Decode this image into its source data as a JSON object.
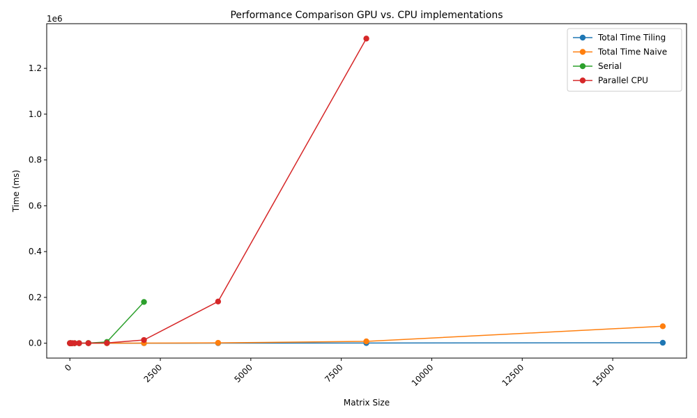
{
  "chart_data": {
    "type": "line",
    "title": "Performance Comparison GPU vs. CPU implementations",
    "xlabel": "Matrix Size",
    "ylabel": "Time (ms)",
    "y_offset_label": "1e6",
    "xlim": [
      -640,
      17040
    ],
    "ylim": [
      -65000,
      1395000
    ],
    "x_ticks": [
      0,
      2500,
      5000,
      7500,
      10000,
      12500,
      15000
    ],
    "x_tick_labels": [
      "0",
      "2500",
      "5000",
      "7500",
      "10000",
      "12500",
      "15000"
    ],
    "x_tick_rotation": 45,
    "y_ticks": [
      0,
      200000,
      400000,
      600000,
      800000,
      1000000,
      1200000
    ],
    "y_tick_labels": [
      "0.0",
      "0.2",
      "0.4",
      "0.6",
      "0.8",
      "1.0",
      "1.2"
    ],
    "grid": false,
    "legend_position": "top-right",
    "series": [
      {
        "name": "Total Time Tiling",
        "color": "#1f77b4",
        "x": [
          2,
          4,
          8,
          16,
          32,
          64,
          128,
          256,
          512,
          1024,
          2048,
          4096,
          8192,
          16384
        ],
        "y": [
          0,
          0,
          0,
          0,
          0,
          0,
          0,
          0,
          5,
          20,
          100,
          300,
          700,
          2000
        ]
      },
      {
        "name": "Total Time Naive",
        "color": "#ff7f0e",
        "x": [
          2,
          4,
          8,
          16,
          32,
          64,
          128,
          256,
          512,
          1024,
          2048,
          4096,
          8192,
          16384
        ],
        "y": [
          0,
          0,
          0,
          0,
          0,
          0,
          0,
          0,
          10,
          50,
          250,
          1500,
          8000,
          74000
        ]
      },
      {
        "name": "Serial",
        "color": "#2ca02c",
        "x": [
          2,
          4,
          8,
          16,
          32,
          64,
          128,
          256,
          512,
          1024,
          2048
        ],
        "y": [
          0,
          0,
          0,
          0,
          0,
          0,
          10,
          100,
          800,
          5500,
          180000
        ]
      },
      {
        "name": "Parallel CPU",
        "color": "#d62728",
        "x": [
          2,
          4,
          8,
          16,
          32,
          64,
          128,
          256,
          512,
          1024,
          2048,
          4096,
          8192
        ],
        "y": [
          0,
          0,
          0,
          0,
          0,
          0,
          0,
          50,
          300,
          1000,
          14000,
          182000,
          1330000
        ]
      }
    ]
  }
}
